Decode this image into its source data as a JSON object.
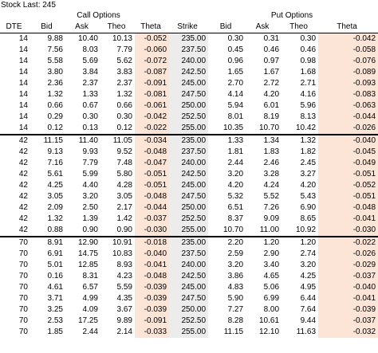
{
  "stock_last": "Stock Last: 245",
  "groups": {
    "call": "Call Options",
    "put": "Put Options"
  },
  "headers": [
    "DTE",
    "Bid",
    "Ask",
    "Theo",
    "Theta",
    "Strike",
    "Bid",
    "Ask",
    "Theo",
    "Theta"
  ],
  "rows": [
    [
      "14",
      "9.88",
      "10.40",
      "10.13",
      "-0.052",
      "235.00",
      "0.30",
      "0.31",
      "0.30",
      "-0.042"
    ],
    [
      "14",
      "7.56",
      "8.03",
      "7.79",
      "-0.060",
      "237.50",
      "0.45",
      "0.46",
      "0.46",
      "-0.058"
    ],
    [
      "14",
      "5.58",
      "5.69",
      "5.62",
      "-0.072",
      "240.00",
      "0.96",
      "0.97",
      "0.98",
      "-0.076"
    ],
    [
      "14",
      "3.80",
      "3.84",
      "3.83",
      "-0.087",
      "242.50",
      "1.65",
      "1.67",
      "1.68",
      "-0.089"
    ],
    [
      "14",
      "2.36",
      "2.37",
      "2.37",
      "-0.091",
      "245.00",
      "2.70",
      "2.72",
      "2.71",
      "-0.093"
    ],
    [
      "14",
      "1.32",
      "1.33",
      "1.32",
      "-0.081",
      "247.50",
      "4.14",
      "4.20",
      "4.16",
      "-0.083"
    ],
    [
      "14",
      "0.66",
      "0.67",
      "0.66",
      "-0.061",
      "250.00",
      "5.94",
      "6.01",
      "5.96",
      "-0.063"
    ],
    [
      "14",
      "0.29",
      "0.30",
      "0.30",
      "-0.042",
      "252.50",
      "8.01",
      "8.19",
      "8.13",
      "-0.044"
    ],
    [
      "14",
      "0.12",
      "0.13",
      "0.12",
      "-0.022",
      "255.00",
      "10.35",
      "10.70",
      "10.42",
      "-0.026"
    ],
    [
      "42",
      "11.15",
      "11.40",
      "11.05",
      "-0.034",
      "235.00",
      "1.33",
      "1.34",
      "1.32",
      "-0.040"
    ],
    [
      "42",
      "9.13",
      "9.93",
      "9.52",
      "-0.048",
      "237.50",
      "1.81",
      "1.83",
      "1.82",
      "-0.045"
    ],
    [
      "42",
      "7.16",
      "7.79",
      "7.48",
      "-0.047",
      "240.00",
      "2.44",
      "2.46",
      "2.45",
      "-0.049"
    ],
    [
      "42",
      "5.61",
      "5.99",
      "5.80",
      "-0.051",
      "242.50",
      "3.20",
      "3.28",
      "3.27",
      "-0.051"
    ],
    [
      "42",
      "4.25",
      "4.40",
      "4.28",
      "-0.051",
      "245.00",
      "4.20",
      "4.24",
      "4.20",
      "-0.052"
    ],
    [
      "42",
      "3.05",
      "3.20",
      "3.05",
      "-0.048",
      "247.50",
      "5.32",
      "5.52",
      "5.43",
      "-0.051"
    ],
    [
      "42",
      "2.09",
      "2.50",
      "2.17",
      "-0.044",
      "250.00",
      "6.51",
      "7.26",
      "6.90",
      "-0.048"
    ],
    [
      "42",
      "1.32",
      "1.39",
      "1.42",
      "-0.037",
      "252.50",
      "8.37",
      "9.09",
      "8.65",
      "-0.041"
    ],
    [
      "42",
      "0.88",
      "0.90",
      "0.90",
      "-0.030",
      "255.00",
      "10.70",
      "11.00",
      "10.92",
      "-0.030"
    ],
    [
      "70",
      "8.91",
      "12.90",
      "10.91",
      "-0.018",
      "235.00",
      "2.20",
      "1.20",
      "1.20",
      "-0.022"
    ],
    [
      "70",
      "6.91",
      "14.75",
      "10.83",
      "-0.040",
      "237.50",
      "2.59",
      "2.90",
      "2.74",
      "-0.026"
    ],
    [
      "70",
      "5.01",
      "12.85",
      "8.93",
      "-0.041",
      "240.00",
      "3.20",
      "3.40",
      "3.20",
      "-0.029"
    ],
    [
      "70",
      "0.16",
      "8.31",
      "4.23",
      "-0.048",
      "242.50",
      "3.86",
      "4.65",
      "4.25",
      "-0.037"
    ],
    [
      "70",
      "4.61",
      "6.57",
      "5.59",
      "-0.039",
      "245.00",
      "4.83",
      "5.06",
      "4.95",
      "-0.040"
    ],
    [
      "70",
      "3.71",
      "4.99",
      "4.35",
      "-0.039",
      "247.50",
      "5.90",
      "6.99",
      "6.44",
      "-0.041"
    ],
    [
      "70",
      "3.25",
      "4.09",
      "3.67",
      "-0.039",
      "250.00",
      "7.27",
      "8.00",
      "7.64",
      "-0.039"
    ],
    [
      "70",
      "2.53",
      "17.25",
      "9.89",
      "-0.091",
      "252.50",
      "8.28",
      "10.61",
      "9.44",
      "-0.037"
    ],
    [
      "70",
      "1.85",
      "2.44",
      "2.14",
      "-0.033",
      "255.00",
      "11.15",
      "12.10",
      "11.63",
      "-0.032"
    ]
  ]
}
